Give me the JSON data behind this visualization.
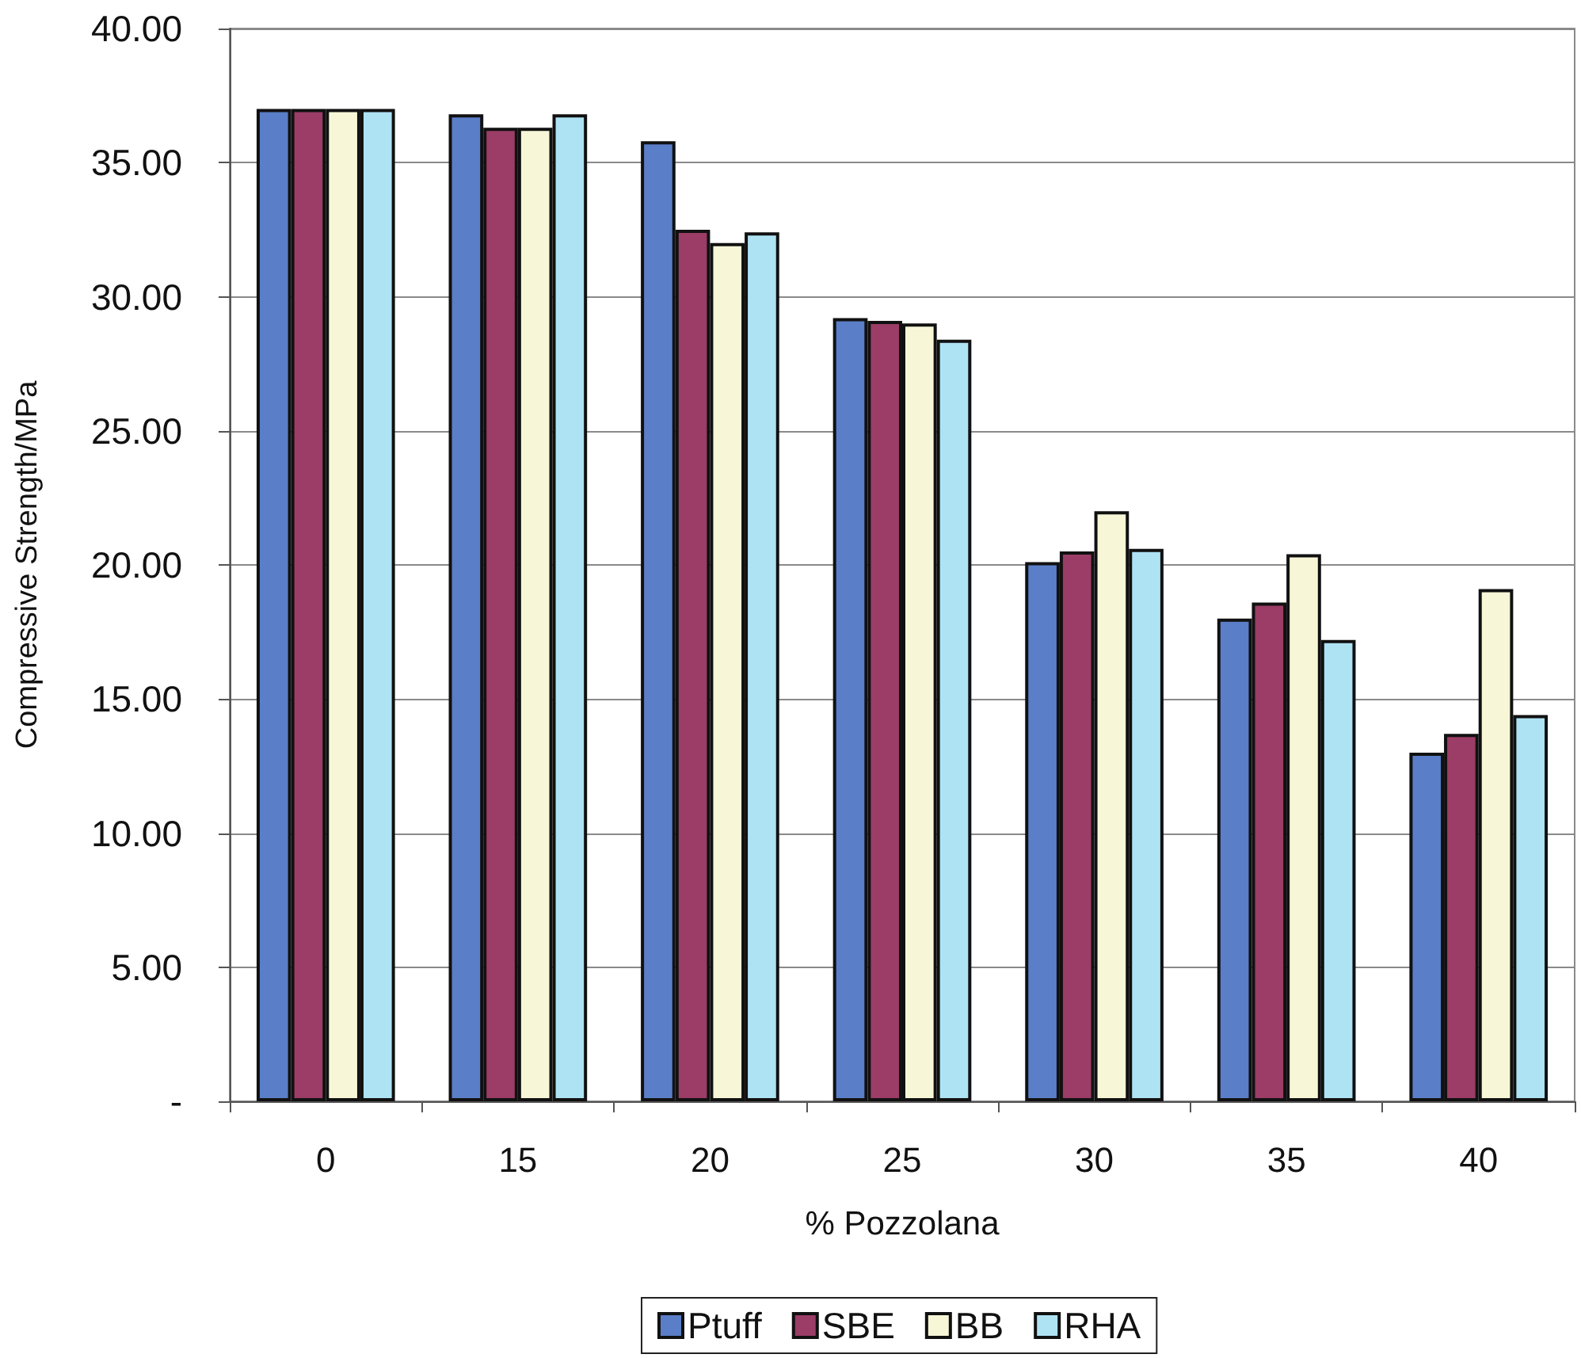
{
  "chart_data": {
    "type": "bar",
    "xlabel": "% Pozzolana",
    "ylabel": "Compressive Strength/MPa",
    "categories": [
      "0",
      "15",
      "20",
      "25",
      "30",
      "35",
      "40"
    ],
    "series": [
      {
        "name": "Ptuff",
        "color": "#5a7ec8",
        "values": [
          37.0,
          36.8,
          35.8,
          29.2,
          20.1,
          18.0,
          13.0
        ]
      },
      {
        "name": "SBE",
        "color": "#9b3d66",
        "values": [
          37.0,
          36.3,
          32.5,
          29.1,
          20.5,
          18.6,
          13.7
        ]
      },
      {
        "name": "BB",
        "color": "#f7f7d8",
        "values": [
          37.0,
          36.3,
          32.0,
          29.0,
          22.0,
          20.4,
          19.1
        ]
      },
      {
        "name": "RHA",
        "color": "#aee3f4",
        "values": [
          37.0,
          36.8,
          32.4,
          28.4,
          20.6,
          17.2,
          14.4
        ]
      }
    ],
    "ylim": [
      0,
      40
    ],
    "yticks": [
      {
        "value": 0,
        "label": "-"
      },
      {
        "value": 5,
        "label": "5.00"
      },
      {
        "value": 10,
        "label": "10.00"
      },
      {
        "value": 15,
        "label": "15.00"
      },
      {
        "value": 20,
        "label": "20.00"
      },
      {
        "value": 25,
        "label": "25.00"
      },
      {
        "value": 30,
        "label": "30.00"
      },
      {
        "value": 35,
        "label": "35.00"
      },
      {
        "value": 40,
        "label": "40.00"
      }
    ],
    "grid": "y",
    "legend": "bottom"
  }
}
